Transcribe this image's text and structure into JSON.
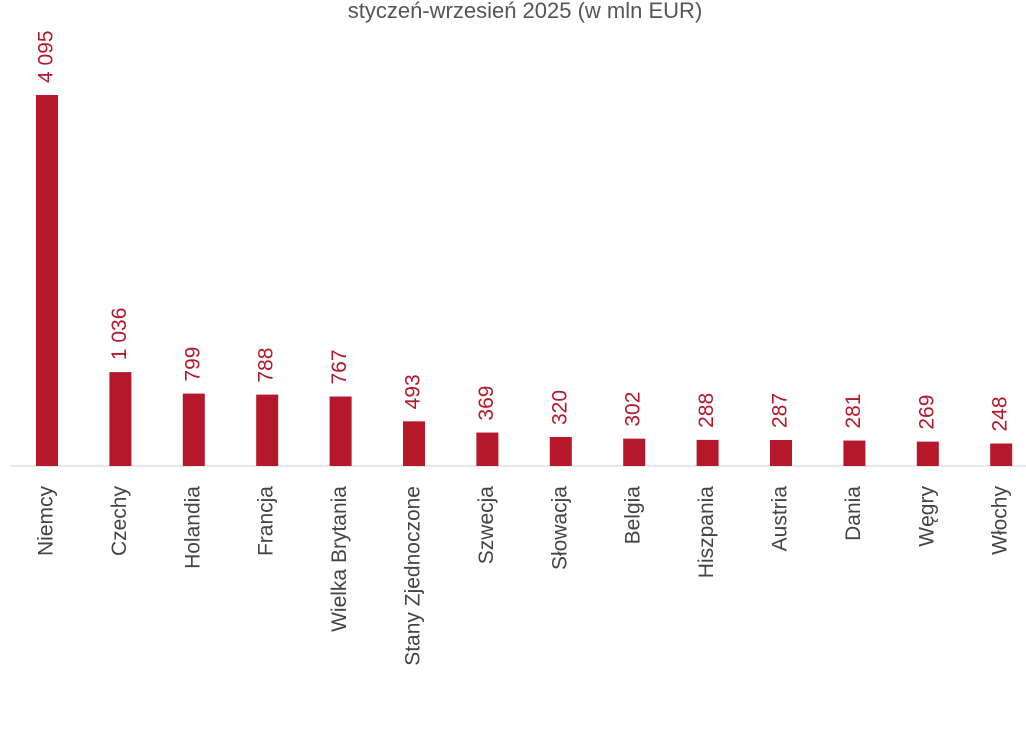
{
  "chart_data": {
    "type": "bar",
    "title": "styczeń-wrzesień 2025 (w mln EUR)",
    "categories": [
      "Niemcy",
      "Czechy",
      "Holandia",
      "Francja",
      "Wielka Brytania",
      "Stany Zjednoczone",
      "Szwecja",
      "Słowacja",
      "Belgia",
      "Hiszpania",
      "Austria",
      "Dania",
      "Węgry",
      "Włochy"
    ],
    "values": [
      4095,
      1036,
      799,
      788,
      767,
      493,
      369,
      320,
      302,
      288,
      287,
      281,
      269,
      248
    ],
    "value_labels": [
      "4 095",
      "1 036",
      "799",
      "788",
      "767",
      "493",
      "369",
      "320",
      "302",
      "288",
      "287",
      "281",
      "269",
      "248"
    ],
    "color": "#b5182b"
  }
}
